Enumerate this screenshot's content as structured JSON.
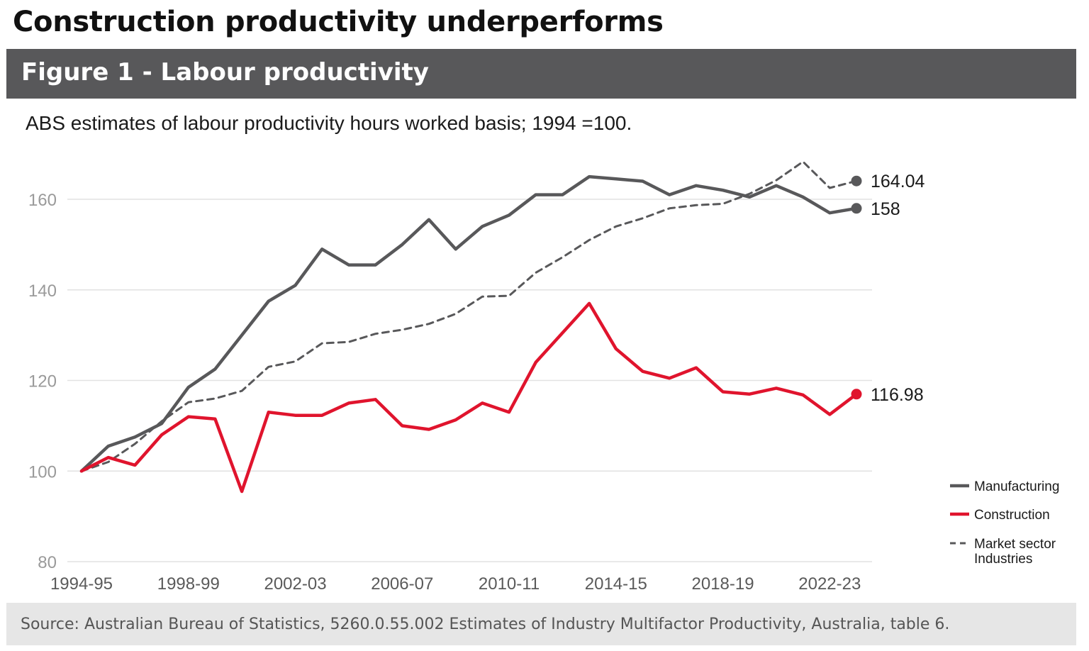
{
  "header": {
    "title": "Construction productivity underperforms",
    "figure_title": "Figure 1 - Labour productivity",
    "subtitle": "ABS estimates of labour productivity hours worked basis; 1994 =100."
  },
  "footer": {
    "source": "Source: Australian Bureau of Statistics, 5260.0.55.002 Estimates of Industry Multifactor Productivity, Australia, table 6."
  },
  "chart_data": {
    "type": "line",
    "title": "Figure 1 - Labour productivity",
    "subtitle": "ABS estimates of labour productivity hours worked basis; 1994 =100.",
    "xlabel": "",
    "ylabel": "",
    "ylim": [
      80,
      170
    ],
    "yticks": [
      80,
      100,
      120,
      140,
      160
    ],
    "grid": true,
    "legend_position": "bottom-right",
    "x": [
      "1994-95",
      "1995-96",
      "1996-97",
      "1997-98",
      "1998-99",
      "1999-00",
      "2000-01",
      "2001-02",
      "2002-03",
      "2003-04",
      "2004-05",
      "2005-06",
      "2006-07",
      "2007-08",
      "2008-09",
      "2009-10",
      "2010-11",
      "2011-12",
      "2012-13",
      "2013-14",
      "2014-15",
      "2015-16",
      "2016-17",
      "2017-18",
      "2018-19",
      "2019-20",
      "2020-21",
      "2021-22",
      "2022-23",
      "2023-24"
    ],
    "xtick_labels": [
      "1994-95",
      "1998-99",
      "2002-03",
      "2006-07",
      "2010-11",
      "2014-15",
      "2018-19",
      "2022-23"
    ],
    "series": [
      {
        "name": "Manufacturing",
        "color": "#58585a",
        "style": "solid",
        "end_label": "158",
        "values": [
          100,
          105.5,
          107.5,
          110.5,
          118.5,
          122.5,
          130,
          137.5,
          141,
          149,
          145.5,
          145.5,
          150,
          155.5,
          149,
          154,
          156.5,
          161,
          161,
          165,
          164.5,
          164,
          161,
          163,
          162,
          160.5,
          163,
          160.5,
          157,
          158
        ]
      },
      {
        "name": "Construction",
        "color": "#e0142d",
        "style": "solid",
        "end_label": "116.98",
        "values": [
          100,
          103,
          101.3,
          108,
          112,
          111.5,
          95.5,
          113,
          112.3,
          112.3,
          115,
          115.8,
          110,
          109.2,
          111.3,
          115,
          113,
          124,
          130.5,
          137,
          127,
          122,
          120.5,
          122.8,
          117.5,
          117,
          118.3,
          116.8,
          112.5,
          116.98
        ]
      },
      {
        "name": "Market sector Industries",
        "color": "#58585a",
        "style": "dashed",
        "end_label": "164.04",
        "values": [
          100,
          102,
          106,
          111,
          115.2,
          116,
          117.7,
          123,
          124.2,
          128.2,
          128.5,
          130.3,
          131.2,
          132.5,
          134.7,
          138.5,
          138.7,
          143.8,
          147.2,
          151,
          154,
          155.8,
          158,
          158.7,
          159,
          161.2,
          164.2,
          168.3,
          162.5,
          164.04
        ]
      }
    ]
  }
}
